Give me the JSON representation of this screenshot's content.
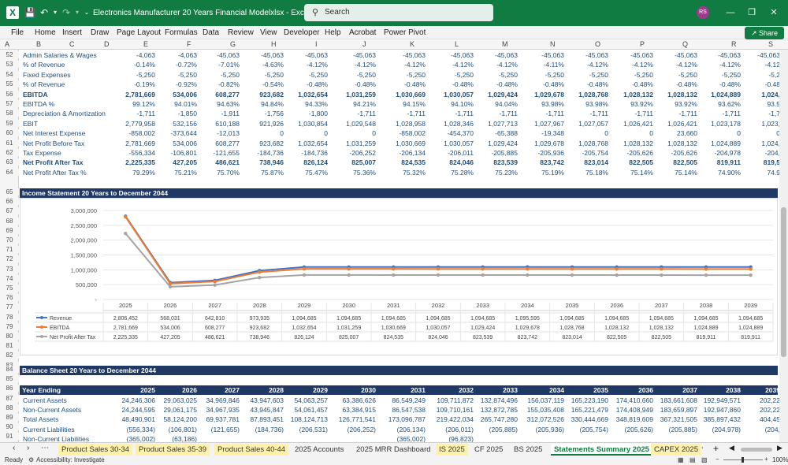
{
  "titlebar": {
    "title": "Electronics Manufacturer 20 Years Financial Modelxlsx  -  Excel",
    "search_placeholder": "Search",
    "avatar_initials": "RS",
    "undo_icon": "undo-icon",
    "redo_icon": "redo-icon"
  },
  "menu": [
    "File",
    "Home",
    "Insert",
    "Draw",
    "Page Layout",
    "Formulas",
    "Data",
    "Review",
    "View",
    "Developer",
    "Help",
    "Acrobat",
    "Power Pivot"
  ],
  "share_label": "Share",
  "columns": [
    "A",
    "B",
    "C",
    "D",
    "E",
    "F",
    "G",
    "H",
    "I",
    "J",
    "K",
    "L",
    "M",
    "N",
    "O",
    "P",
    "Q",
    "R",
    "S"
  ],
  "top_rows": [
    {
      "num": "52",
      "label": "Admin Salaries & Wages",
      "bold": false,
      "values": [
        "-4,063",
        "-4,063",
        "-45,063",
        "-45,063",
        "-45,063",
        "-45,063",
        "-45,063",
        "-45,063",
        "-45,063",
        "-45,063",
        "-45,063",
        "-45,063",
        "-45,063",
        "-45,063",
        "-45,063"
      ]
    },
    {
      "num": "53",
      "label": "% of Revenue",
      "bold": false,
      "values": [
        "-0.14%",
        "-0.72%",
        "-7.01%",
        "-4.63%",
        "-4.12%",
        "-4.12%",
        "-4.12%",
        "-4.12%",
        "-4.12%",
        "-4.11%",
        "-4.12%",
        "-4.12%",
        "-4.12%",
        "-4.12%",
        "-4.12"
      ]
    },
    {
      "num": "54",
      "label": "Fixed Expenses",
      "bold": false,
      "values": [
        "-5,250",
        "-5,250",
        "-5,250",
        "-5,250",
        "-5,250",
        "-5,250",
        "-5,250",
        "-5,250",
        "-5,250",
        "-5,250",
        "-5,250",
        "-5,250",
        "-5,250",
        "-5,250",
        "-5,2"
      ]
    },
    {
      "num": "55",
      "label": "% of Revenue",
      "bold": false,
      "values": [
        "-0.19%",
        "-0.92%",
        "-0.82%",
        "-0.54%",
        "-0.48%",
        "-0.48%",
        "-0.48%",
        "-0.48%",
        "-0.48%",
        "-0.48%",
        "-0.48%",
        "-0.48%",
        "-0.48%",
        "-0.48%",
        "-0.48"
      ]
    },
    {
      "num": "56",
      "label": "EBITDA",
      "bold": true,
      "values": [
        "2,781,669",
        "534,006",
        "608,277",
        "923,682",
        "1,032,654",
        "1,031,259",
        "1,030,669",
        "1,030,057",
        "1,029,424",
        "1,029,678",
        "1,028,768",
        "1,028,132",
        "1,028,132",
        "1,024,889",
        "1,024,"
      ]
    },
    {
      "num": "57",
      "label": "EBITDA %",
      "bold": false,
      "values": [
        "99.12%",
        "94.01%",
        "94.63%",
        "94.84%",
        "94.33%",
        "94.21%",
        "94.15%",
        "94.10%",
        "94.04%",
        "93.98%",
        "93.98%",
        "93.92%",
        "93.92%",
        "93.62%",
        "93.5"
      ]
    },
    {
      "num": "58",
      "label": "Depreciation & Amortization",
      "bold": false,
      "values": [
        "-1,711",
        "-1,850",
        "-1,911",
        "-1,756",
        "-1,800",
        "-1,711",
        "-1,711",
        "-1,711",
        "-1,711",
        "-1,711",
        "-1,711",
        "-1,711",
        "-1,711",
        "-1,711",
        "-1,7"
      ]
    },
    {
      "num": "59",
      "label": "EBIT",
      "bold": false,
      "values": [
        "2,779,958",
        "532,156",
        "610,188",
        "921,926",
        "1,030,854",
        "1,029,548",
        "1,028,958",
        "1,028,346",
        "1,027,713",
        "1,027,967",
        "1,027,057",
        "1,026,421",
        "1,026,421",
        "1,023,178",
        "1,023,"
      ]
    },
    {
      "num": "60",
      "label": "Net Interest Expense",
      "bold": false,
      "values": [
        "-858,002",
        "-373,644",
        "-12,013",
        "0",
        "0",
        "0",
        "-858,002",
        "-454,370",
        "-65,388",
        "-19,348",
        "0",
        "0",
        "23,660",
        "0",
        "0"
      ]
    },
    {
      "num": "61",
      "label": "Net Profit Before Tax",
      "bold": false,
      "values": [
        "2,781,669",
        "534,006",
        "608,277",
        "923,682",
        "1,032,654",
        "1,031,259",
        "1,030,669",
        "1,030,057",
        "1,029,424",
        "1,029,678",
        "1,028,768",
        "1,028,132",
        "1,028,132",
        "1,024,889",
        "1,024,"
      ]
    },
    {
      "num": "62",
      "label": "Tax Expense",
      "bold": false,
      "values": [
        "-556,334",
        "-106,801",
        "-121,655",
        "-184,736",
        "-184,736",
        "-206,252",
        "-206,134",
        "-206,011",
        "-205,885",
        "-205,936",
        "-205,754",
        "-205,626",
        "-205,626",
        "-204,978",
        "-204,"
      ]
    },
    {
      "num": "63",
      "label": "Net Profit After Tax",
      "bold": true,
      "values": [
        "2,225,335",
        "427,205",
        "486,621",
        "738,946",
        "826,124",
        "825,007",
        "824,535",
        "824,046",
        "823,539",
        "823,742",
        "823,014",
        "822,505",
        "822,505",
        "819,911",
        "819,5"
      ]
    },
    {
      "num": "64",
      "label": "Net Profit After Tax %",
      "bold": false,
      "values": [
        "79.29%",
        "75.21%",
        "75.70%",
        "75.87%",
        "75.47%",
        "75.36%",
        "75.32%",
        "75.28%",
        "75.23%",
        "75.19%",
        "75.18%",
        "75.14%",
        "75.14%",
        "74.90%",
        "74.9"
      ]
    }
  ],
  "income_section_title": "Income Statement 20 Years to December 2044",
  "balance_section_title": "Balance Sheet 20 Years to December 2044",
  "chart_rownums": [
    "65",
    "66",
    "67",
    "68",
    "69",
    "70",
    "71",
    "72",
    "73",
    "74",
    "75",
    "76",
    "77",
    "78",
    "79",
    "80",
    "81",
    "82",
    "83"
  ],
  "chart_data": {
    "type": "line",
    "title": "",
    "ylim": [
      0,
      3000000
    ],
    "y_ticks": [
      "3,000,000",
      "2,500,000",
      "2,000,000",
      "1,500,000",
      "1,000,000",
      "500,000",
      "-"
    ],
    "categories": [
      "2025",
      "2026",
      "2027",
      "2028",
      "2029",
      "2030",
      "2031",
      "2032",
      "2033",
      "2034",
      "2035",
      "2036",
      "2037",
      "2038",
      "2039"
    ],
    "series": [
      {
        "name": "Revenue",
        "color": "#4472c4",
        "values": [
          2806452,
          568031,
          642810,
          973935,
          1094685,
          1094685,
          1094685,
          1094685,
          1094685,
          1095595,
          1094685,
          1094685,
          1094685,
          1094685,
          1094685
        ]
      },
      {
        "name": "EBITDA",
        "color": "#ed7d31",
        "values": [
          2781669,
          534006,
          608277,
          923682,
          1032654,
          1031259,
          1030669,
          1030057,
          1029424,
          1029678,
          1028768,
          1028132,
          1028132,
          1024889,
          1024889
        ]
      },
      {
        "name": "Net Profit After Tax",
        "color": "#a5a5a5",
        "values": [
          2225335,
          427205,
          486621,
          738946,
          826124,
          825007,
          824535,
          824046,
          823539,
          823742,
          823014,
          822505,
          822505,
          819911,
          819911
        ]
      }
    ],
    "table_values": [
      [
        "2,806,452",
        "568,031",
        "642,810",
        "973,935",
        "1,094,685",
        "1,094,685",
        "1,094,685",
        "1,094,685",
        "1,094,685",
        "1,095,595",
        "1,094,685",
        "1,094,685",
        "1,094,685",
        "1,094,685",
        "1,094,685"
      ],
      [
        "2,781,669",
        "534,006",
        "608,277",
        "923,682",
        "1,032,654",
        "1,031,259",
        "1,030,669",
        "1,030,057",
        "1,029,424",
        "1,029,678",
        "1,028,768",
        "1,028,132",
        "1,028,132",
        "1,024,889",
        "1,024,889"
      ],
      [
        "2,225,335",
        "427,205",
        "486,621",
        "738,946",
        "826,124",
        "825,007",
        "824,535",
        "824,046",
        "823,539",
        "823,742",
        "823,014",
        "822,505",
        "822,505",
        "819,911",
        "819,911"
      ]
    ],
    "legend_labels": [
      "Revenue",
      "EBITDA",
      "Net Profit After Tax"
    ]
  },
  "bs_rows_nums": [
    "84",
    "85",
    "86",
    "87",
    "88",
    "89",
    "90",
    "91"
  ],
  "bs_header": {
    "label": "Year Ending",
    "years": [
      "2025",
      "2026",
      "2027",
      "2028",
      "2029",
      "2030",
      "2031",
      "2032",
      "2033",
      "2034",
      "2035",
      "2036",
      "2037",
      "2038",
      "2039"
    ]
  },
  "bs_rows": [
    {
      "label": "Current Assets",
      "values": [
        "24,246,306",
        "29,063,025",
        "34,969,846",
        "43,947,603",
        "54,063,257",
        "63,386,626",
        "86,549,249",
        "109,711,872",
        "132,874,496",
        "156,037,119",
        "165,223,190",
        "174,410,660",
        "183,661,608",
        "192,949,571",
        "202,22"
      ]
    },
    {
      "label": "Non-Current Assets",
      "values": [
        "24,244,595",
        "29,061,175",
        "34,967,935",
        "43,945,847",
        "54,061,457",
        "63,384,915",
        "86,547,538",
        "109,710,161",
        "132,872,785",
        "155,035,408",
        "165,221,479",
        "174,408,949",
        "183,659,897",
        "192,947,860",
        "202,22"
      ]
    },
    {
      "label": "Total Assets",
      "values": [
        "48,490,901",
        "58,124,200",
        "69,937,781",
        "87,893,451",
        "108,124,713",
        "126,771,541",
        "173,096,787",
        "219,422,034",
        "265,747,280",
        "312,072,526",
        "330,444,669",
        "348,819,609",
        "367,321,505",
        "385,897,432",
        "404,45"
      ]
    },
    {
      "label": "Current Liabilities",
      "values": [
        "(556,334)",
        "(106,801)",
        "(121,655)",
        "(184,736)",
        "(206,531)",
        "(206,252)",
        "(206,134)",
        "(206,011)",
        "(205,885)",
        "(205,936)",
        "(205,754)",
        "(205,626)",
        "(205,885)",
        "(204,978)",
        "(204,"
      ]
    },
    {
      "label": "Non-Current Liabilities",
      "values": [
        "(365,002)",
        "(63,186)",
        "",
        "",
        "",
        "",
        "(365,002)",
        "(96,823)",
        "",
        "",
        "",
        "",
        "",
        "",
        ""
      ]
    }
  ],
  "tabs": [
    {
      "label": "Product Sales 30-34",
      "style": "yellow"
    },
    {
      "label": "Product Sales 35-39",
      "style": "yellow"
    },
    {
      "label": "Product Sales 40-44",
      "style": "yellow"
    },
    {
      "label": "2025 Accounts",
      "style": "plain"
    },
    {
      "label": "2025 MRR Dashboard",
      "style": "plain"
    },
    {
      "label": "IS 2025",
      "style": "yellow"
    },
    {
      "label": "CF 2025",
      "style": "plain"
    },
    {
      "label": "BS 2025",
      "style": "plain"
    },
    {
      "label": "Statements Summary 2025",
      "style": "active"
    },
    {
      "label": "CAPEX 2025",
      "style": "yellow"
    }
  ],
  "status": {
    "ready": "Ready",
    "accessibility": "Accessibility: Investigate",
    "zoom": "100%"
  }
}
